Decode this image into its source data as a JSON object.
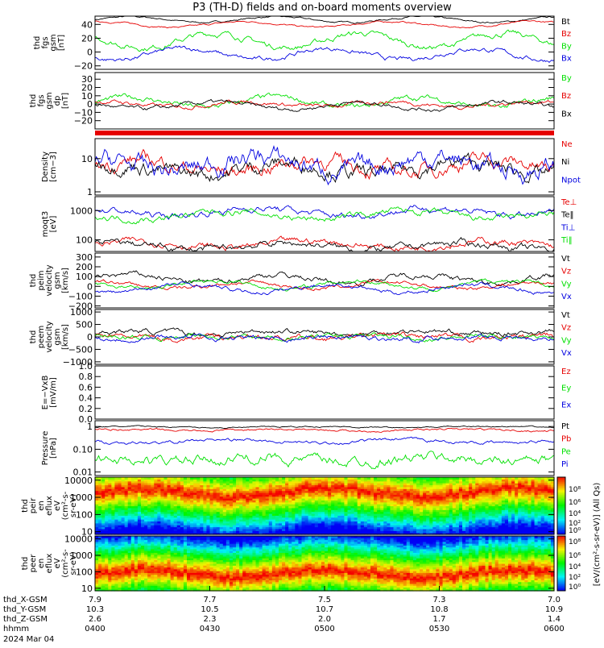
{
  "title": "P3 (TH-D) fields and on-board moments overview",
  "colors": {
    "black": "#000000",
    "red": "#e60000",
    "green": "#00e000",
    "blue": "#0000e0"
  },
  "chart_data": [
    {
      "type": "line",
      "ylabel_lines": [
        "thd",
        "fgs",
        "gsm",
        "[nT]"
      ],
      "ylim": [
        -25,
        52
      ],
      "yticks": [
        {
          "v": 40,
          "label": "40"
        },
        {
          "v": 20,
          "label": "20"
        },
        {
          "v": 0,
          "label": "0"
        },
        {
          "v": -20,
          "label": "−20"
        }
      ],
      "series": [
        {
          "name": "Bt",
          "color": "black",
          "base": 47,
          "amp": 4,
          "noise": 1.5
        },
        {
          "name": "Bz",
          "color": "red",
          "base": 40,
          "amp": 4,
          "noise": 1.5
        },
        {
          "name": "By",
          "color": "green",
          "base": 17,
          "amp": 10,
          "noise": 5
        },
        {
          "name": "Bx",
          "color": "blue",
          "base": -3,
          "amp": 8,
          "noise": 4
        }
      ]
    },
    {
      "type": "line",
      "ylabel_lines": [
        "thd",
        "fgs",
        "gsm",
        "dp",
        "[nT]"
      ],
      "ylim": [
        -30,
        38
      ],
      "yticks": [
        {
          "v": 30,
          "label": "30"
        },
        {
          "v": 20,
          "label": "20"
        },
        {
          "v": 10,
          "label": "10"
        },
        {
          "v": 0,
          "label": "0"
        },
        {
          "v": -10,
          "label": "−10"
        },
        {
          "v": -20,
          "label": "−20"
        }
      ],
      "series": [
        {
          "name": "By",
          "color": "green",
          "base": 2,
          "amp": 6,
          "noise": 4
        },
        {
          "name": "Bz",
          "color": "red",
          "base": 0,
          "amp": 3,
          "noise": 3
        },
        {
          "name": "Bx",
          "color": "black",
          "base": -2,
          "amp": 4,
          "noise": 3
        }
      ]
    },
    {
      "type": "line",
      "log": true,
      "ylabel_lines": [
        "Density",
        "[cm−3]"
      ],
      "ylim": [
        0.8,
        40
      ],
      "yticks": [
        {
          "v": 10,
          "label": "10"
        },
        {
          "v": 1,
          "label": "1"
        }
      ],
      "series": [
        {
          "name": "Ne",
          "color": "red",
          "base": 6,
          "amp": 0.4,
          "noise": 0.15
        },
        {
          "name": "Ni",
          "color": "black",
          "base": 5,
          "amp": 0.4,
          "noise": 0.15
        },
        {
          "name": "Npot",
          "color": "blue",
          "base": 7,
          "amp": 0.5,
          "noise": 0.2
        }
      ]
    },
    {
      "type": "line",
      "log": true,
      "ylabel_lines": [
        "moqt3",
        "[eV]"
      ],
      "ylim": [
        40,
        3000
      ],
      "yticks": [
        {
          "v": 1000,
          "label": "1000"
        },
        {
          "v": 100,
          "label": "100"
        }
      ],
      "series": [
        {
          "name": "Te⊥",
          "color": "red",
          "base": 70,
          "amp": 0.25,
          "noise": 0.08
        },
        {
          "name": "Te‖",
          "color": "black",
          "base": 60,
          "amp": 0.25,
          "noise": 0.08
        },
        {
          "name": "Ti⊥",
          "color": "blue",
          "base": 900,
          "amp": 0.3,
          "noise": 0.08
        },
        {
          "name": "Ti‖",
          "color": "green",
          "base": 700,
          "amp": 0.3,
          "noise": 0.08
        }
      ]
    },
    {
      "type": "line",
      "ylabel_lines": [
        "thd",
        "peim",
        "velocity",
        "gsm",
        "[km/s]"
      ],
      "ylim": [
        -220,
        340
      ],
      "yticks": [
        {
          "v": 300,
          "label": "300"
        },
        {
          "v": 200,
          "label": "200"
        },
        {
          "v": 100,
          "label": "100"
        },
        {
          "v": 0,
          "label": "0"
        },
        {
          "v": -100,
          "label": "−100"
        },
        {
          "v": -200,
          "label": "−200"
        }
      ],
      "series": [
        {
          "name": "Vt",
          "color": "black",
          "base": 80,
          "amp": 40,
          "noise": 35
        },
        {
          "name": "Vz",
          "color": "red",
          "base": 10,
          "amp": 30,
          "noise": 25
        },
        {
          "name": "Vy",
          "color": "green",
          "base": 20,
          "amp": 40,
          "noise": 25
        },
        {
          "name": "Vx",
          "color": "blue",
          "base": -20,
          "amp": 40,
          "noise": 25
        }
      ]
    },
    {
      "type": "line",
      "ylabel_lines": [
        "thd",
        "peem",
        "velocity",
        "gsm",
        "[km/s]"
      ],
      "ylim": [
        -1100,
        1100
      ],
      "yticks": [
        {
          "v": 1000,
          "label": "1000"
        },
        {
          "v": 500,
          "label": "500"
        },
        {
          "v": 0,
          "label": "0"
        },
        {
          "v": -500,
          "label": "−500"
        },
        {
          "v": -1000,
          "label": "−1000"
        }
      ],
      "series": [
        {
          "name": "Vt",
          "color": "black",
          "base": 180,
          "amp": 60,
          "noise": 120
        },
        {
          "name": "Vz",
          "color": "red",
          "base": -20,
          "amp": 40,
          "noise": 140
        },
        {
          "name": "Vy",
          "color": "green",
          "base": 0,
          "amp": 40,
          "noise": 120
        },
        {
          "name": "Vx",
          "color": "blue",
          "base": -30,
          "amp": 40,
          "noise": 120
        }
      ]
    },
    {
      "type": "line",
      "empty": true,
      "ylabel_lines": [
        "E=−VxB",
        "[mV/m]"
      ],
      "ylim": [
        0,
        1
      ],
      "yticks": [
        {
          "v": 1.0,
          "label": "1.0"
        },
        {
          "v": 0.8,
          "label": "0.8"
        },
        {
          "v": 0.6,
          "label": "0.6"
        },
        {
          "v": 0.4,
          "label": "0.4"
        },
        {
          "v": 0.2,
          "label": "0.2"
        },
        {
          "v": 0.0,
          "label": "0.0"
        }
      ],
      "series": [
        {
          "name": "Ez",
          "color": "red"
        },
        {
          "name": "Ey",
          "color": "green"
        },
        {
          "name": "Ex",
          "color": "blue"
        }
      ]
    },
    {
      "type": "line",
      "log": true,
      "ylabel_lines": [
        "Pressure",
        "[nPa]"
      ],
      "ylim": [
        0.007,
        1.8
      ],
      "yticks": [
        {
          "v": 1,
          "label": "1"
        },
        {
          "v": 0.1,
          "label": "0.10"
        },
        {
          "v": 0.01,
          "label": "0.01"
        }
      ],
      "series": [
        {
          "name": "Pt",
          "color": "black",
          "base": 0.95,
          "amp": 0.05,
          "noise": 0.02
        },
        {
          "name": "Pb",
          "color": "red",
          "base": 0.7,
          "amp": 0.08,
          "noise": 0.03
        },
        {
          "name": "Pe",
          "color": "green",
          "base": 0.035,
          "amp": 0.2,
          "noise": 0.15
        },
        {
          "name": "Pi",
          "color": "blue",
          "base": 0.22,
          "amp": 0.15,
          "noise": 0.05
        }
      ]
    },
    {
      "type": "heatmap",
      "ylabel_lines": [
        "thd",
        "peir",
        "en",
        "eflux",
        "eV",
        "(cm²-s-",
        "sr-eV)"
      ],
      "log": true,
      "ylim": [
        7,
        15000
      ],
      "yticks": [
        {
          "v": 10000,
          "label": "10000"
        },
        {
          "v": 1000,
          "label": "1000"
        },
        {
          "v": 100,
          "label": "100"
        },
        {
          "v": 10,
          "label": "10"
        }
      ],
      "peak_energy_eV": 2000
    },
    {
      "type": "heatmap",
      "ylabel_lines": [
        "thd",
        "peer",
        "en",
        "eflux",
        "eV",
        "(cm²-s-",
        "sr-eV)"
      ],
      "log": true,
      "ylim": [
        7,
        15000
      ],
      "yticks": [
        {
          "v": 10000,
          "label": "10000"
        },
        {
          "v": 1000,
          "label": "1000"
        },
        {
          "v": 100,
          "label": "100"
        },
        {
          "v": 10,
          "label": "10"
        }
      ],
      "peak_energy_eV": 80
    }
  ],
  "colorbar": {
    "ticks": [
      "10⁸",
      "10⁶",
      "10⁴",
      "10²",
      "10⁰",
      "10⁸",
      "10⁶",
      "10⁴",
      "10²",
      "10⁰"
    ],
    "label": "[eV/(cm²-s-sr-eV)] (All Qs)"
  },
  "xaxis": {
    "rows": [
      {
        "label": "thd_X-GSM",
        "values": [
          "7.9",
          "7.7",
          "7.5",
          "7.3",
          "7.0"
        ]
      },
      {
        "label": "thd_Y-GSM",
        "values": [
          "10.3",
          "10.5",
          "10.7",
          "10.8",
          "10.9"
        ]
      },
      {
        "label": "thd_Z-GSM",
        "values": [
          "2.6",
          "2.3",
          "2.0",
          "1.7",
          "1.4"
        ]
      },
      {
        "label": "hhmm",
        "values": [
          "0400",
          "0430",
          "0500",
          "0530",
          "0600"
        ]
      }
    ],
    "date": "2024 Mar 04"
  }
}
